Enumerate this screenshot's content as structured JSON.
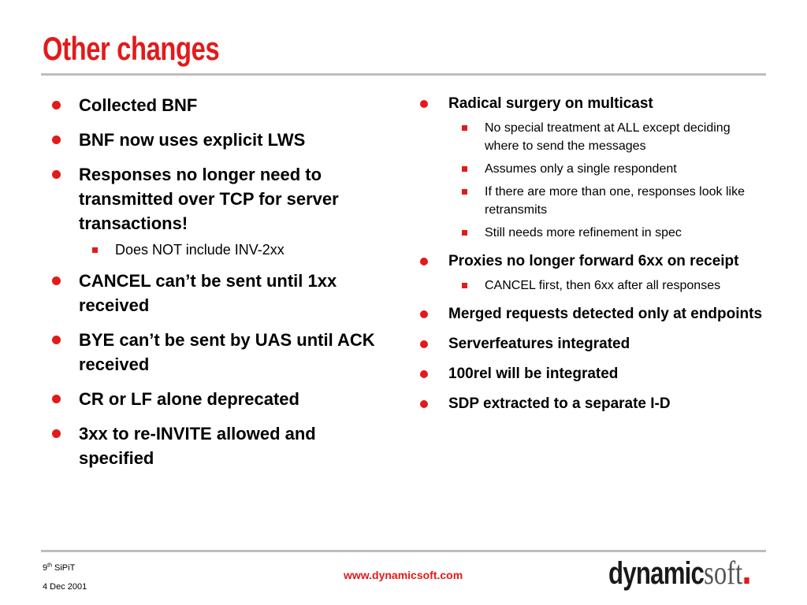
{
  "slide": {
    "title": "Other changes"
  },
  "left_column": {
    "items": [
      {
        "text": "Collected BNF",
        "sub": []
      },
      {
        "text": "BNF now uses explicit LWS",
        "sub": []
      },
      {
        "text": "Responses no longer need to transmitted over TCP for server transactions!",
        "sub": [
          "Does NOT include INV-2xx"
        ]
      },
      {
        "text": "CANCEL can’t be sent until 1xx received",
        "sub": []
      },
      {
        "text": "BYE can’t be sent by UAS until ACK received",
        "sub": []
      },
      {
        "text": "CR or LF alone deprecated",
        "sub": []
      },
      {
        "text": "3xx to re-INVITE allowed and specified",
        "sub": []
      }
    ]
  },
  "right_column": {
    "items": [
      {
        "text": "Radical surgery on multicast",
        "sub": [
          "No special treatment at ALL except deciding where to send the messages",
          "Assumes only a single respondent",
          "If there are more than one, responses look like retransmits",
          "Still needs more refinement in spec"
        ]
      },
      {
        "text": "Proxies no longer forward 6xx on receipt",
        "sub": [
          "CANCEL first, then 6xx after all responses"
        ]
      },
      {
        "text": "Merged requests detected only at endpoints",
        "sub": []
      },
      {
        "text": "Serverfeatures integrated",
        "sub": []
      },
      {
        "text": "100rel will be integrated",
        "sub": []
      },
      {
        "text": "SDP extracted to a separate I-D",
        "sub": []
      }
    ]
  },
  "footer": {
    "event_number": "9",
    "event_suffix": "th",
    "event_name": "SiPiT",
    "date": "4 Dec 2001",
    "url": "www.dynamicsoft.com",
    "logo_bold": "dynamic",
    "logo_light": "soft"
  },
  "colors": {
    "accent": "#e21a1a",
    "rule": "#bdbdbd",
    "text": "#000000"
  }
}
